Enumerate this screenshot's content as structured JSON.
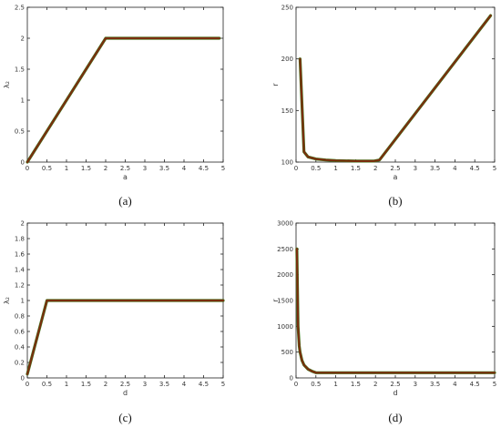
{
  "colors": {
    "line": "#7a2e0e",
    "line_shadow": "#3f7a1c"
  },
  "chart_data": [
    {
      "panel": "a",
      "caption": "(a)",
      "type": "line",
      "xlabel": "a",
      "ylabel": "λ₂",
      "xlim": [
        0,
        5
      ],
      "ylim": [
        0,
        2.5
      ],
      "xticks": [
        "0",
        "0.5",
        "1",
        "1.5",
        "2",
        "2.5",
        "3",
        "3.5",
        "4",
        "4.5",
        "5"
      ],
      "yticks": [
        "0",
        "0.5",
        "1",
        "1.5",
        "2",
        "2.5"
      ],
      "series": [
        {
          "x": [
            0,
            2,
            4.9
          ],
          "y": [
            0,
            2,
            2
          ]
        }
      ]
    },
    {
      "panel": "b",
      "caption": "(b)",
      "type": "line",
      "xlabel": "a",
      "ylabel": "r",
      "xlim": [
        0,
        5
      ],
      "ylim": [
        100,
        250
      ],
      "xticks": [
        "0",
        "0.5",
        "1",
        "1.5",
        "2",
        "2.5",
        "3",
        "3.5",
        "4",
        "4.5",
        "5"
      ],
      "yticks": [
        "100",
        "150",
        "200",
        "250"
      ],
      "series": [
        {
          "x": [
            0.1,
            0.2,
            0.3,
            0.5,
            0.75,
            1.0,
            1.5,
            1.8,
            1.95,
            2.1,
            4.9
          ],
          "y": [
            200,
            110,
            105,
            103,
            102,
            101.5,
            101,
            101,
            101,
            102,
            242
          ]
        }
      ]
    },
    {
      "panel": "c",
      "caption": "(c)",
      "type": "line",
      "xlabel": "d",
      "ylabel": "λ₂",
      "xlim": [
        0,
        5
      ],
      "ylim": [
        0,
        2
      ],
      "xticks": [
        "0",
        "0.5",
        "1",
        "1.5",
        "2",
        "2.5",
        "3",
        "3.5",
        "4",
        "4.5",
        "5"
      ],
      "yticks": [
        "0",
        "0.2",
        "0.4",
        "0.6",
        "0.8",
        "1",
        "1.2",
        "1.4",
        "1.6",
        "1.8",
        "2"
      ],
      "series": [
        {
          "x": [
            0,
            0.5,
            5
          ],
          "y": [
            0.05,
            1,
            1
          ]
        }
      ]
    },
    {
      "panel": "d",
      "caption": "(d)",
      "type": "line",
      "xlabel": "d",
      "ylabel": "r",
      "xlim": [
        0,
        5
      ],
      "ylim": [
        0,
        3000
      ],
      "xticks": [
        "0",
        "0.5",
        "1",
        "1.5",
        "2",
        "2.5",
        "3",
        "3.5",
        "4",
        "4.5",
        "5"
      ],
      "yticks": [
        "0",
        "500",
        "1000",
        "1500",
        "2000",
        "2500",
        "3000"
      ],
      "series": [
        {
          "x": [
            0.02,
            0.05,
            0.08,
            0.1,
            0.15,
            0.2,
            0.3,
            0.4,
            0.5,
            1,
            2,
            3,
            4,
            5
          ],
          "y": [
            2500,
            1000,
            620,
            500,
            340,
            250,
            170,
            130,
            100,
            100,
            100,
            100,
            100,
            100
          ]
        }
      ]
    }
  ]
}
